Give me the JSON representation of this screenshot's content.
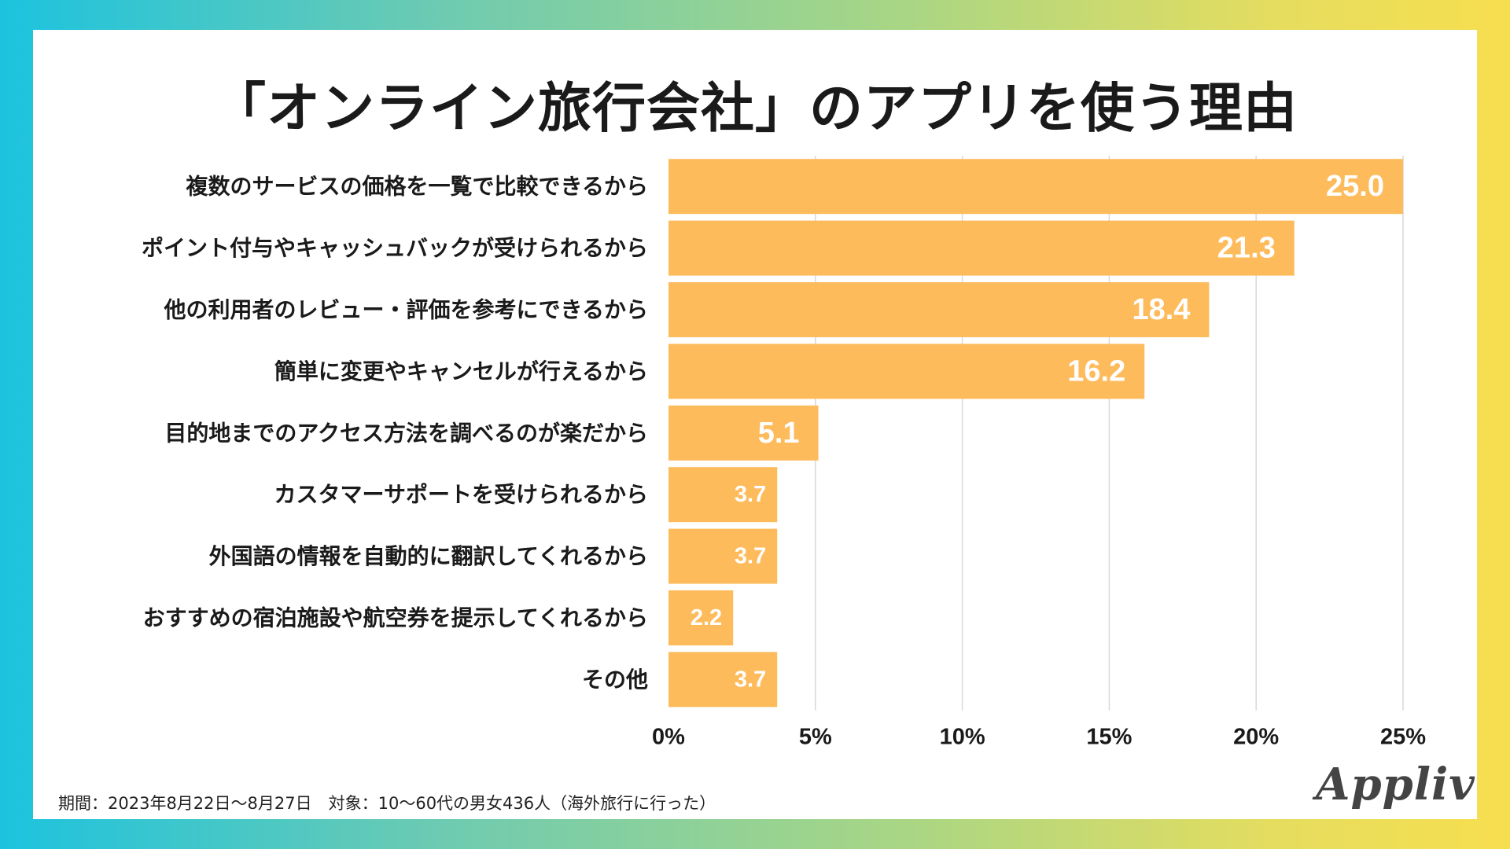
{
  "chart_data": {
    "type": "bar",
    "orientation": "horizontal",
    "title": "「オンライン旅行会社」のアプリを使う理由",
    "categories": [
      "複数のサービスの価格を一覧で比較できるから",
      "ポイント付与やキャッシュバックが受けられるから",
      "他の利用者のレビュー・評価を参考にできるから",
      "簡単に変更やキャンセルが行えるから",
      "目的地までのアクセス方法を調べるのが楽だから",
      "カスタマーサポートを受けられるから",
      "外国語の情報を自動的に翻訳してくれるから",
      "おすすめの宿泊施設や航空券を提示してくれるから",
      "その他"
    ],
    "values": [
      25.0,
      21.3,
      18.4,
      16.2,
      5.1,
      3.7,
      3.7,
      2.2,
      3.7
    ],
    "value_labels": [
      "25.0",
      "21.3",
      "18.4",
      "16.2",
      "5.1",
      "3.7",
      "3.7",
      "2.2",
      "3.7"
    ],
    "xlim": [
      0,
      25
    ],
    "xticks": [
      0,
      5,
      10,
      15,
      20,
      25
    ],
    "xtick_labels": [
      "0%",
      "5%",
      "10%",
      "15%",
      "20%",
      "25%"
    ],
    "xlabel": "",
    "ylabel": "",
    "grid": true,
    "bar_color": "#fdbb5c",
    "grid_color": "#d9d9d9",
    "label_color": "#ffffff"
  },
  "footnote": "期間：2023年8月22日〜8月27日　対象：10〜60代の男女436人（海外旅行に行った）",
  "logo": "Appliv"
}
